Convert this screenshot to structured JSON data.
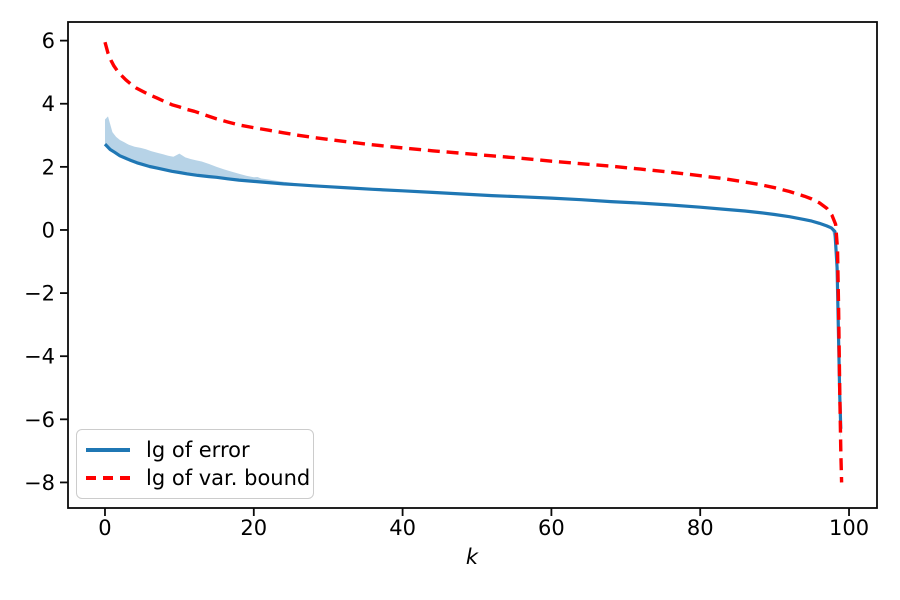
{
  "figure": {
    "xlabel": "k",
    "legend_items": [
      {
        "label": "lg of error",
        "color": "#1f77b4",
        "style": "solid"
      },
      {
        "label": "lg of var. bound",
        "color": "#ff0000",
        "style": "dashed"
      }
    ]
  },
  "colors": {
    "error_line": "#1f77b4",
    "band_fill": "#1f77b4",
    "band_opacity": 0.32,
    "var_bound_line": "#ff0000",
    "spine": "#0a0a0a",
    "tick_text": "#000000",
    "legend_border": "#cccccc"
  },
  "chart_data": {
    "type": "line",
    "title": "",
    "xlabel": "k",
    "ylabel": "",
    "grid": false,
    "legend_position": "lower left",
    "xlim": [
      -4.97,
      103.76
    ],
    "ylim": [
      -8.81,
      6.59
    ],
    "xticks": [
      0,
      20,
      40,
      60,
      80,
      100
    ],
    "yticks": [
      -8,
      -6,
      -4,
      -2,
      0,
      2,
      4,
      6
    ],
    "series": [
      {
        "name": "lg of error",
        "color": "#1f77b4",
        "style": "solid",
        "width": 3.2,
        "points": [
          [
            0,
            2.72
          ],
          [
            0.7,
            2.55
          ],
          [
            1.3,
            2.46
          ],
          [
            2,
            2.35
          ],
          [
            2.7,
            2.28
          ],
          [
            3.5,
            2.2
          ],
          [
            4.3,
            2.13
          ],
          [
            5,
            2.08
          ],
          [
            6,
            2.01
          ],
          [
            7,
            1.96
          ],
          [
            8,
            1.91
          ],
          [
            9,
            1.86
          ],
          [
            10,
            1.82
          ],
          [
            11,
            1.78
          ],
          [
            12.5,
            1.73
          ],
          [
            14,
            1.69
          ],
          [
            15,
            1.67
          ],
          [
            16.5,
            1.62
          ],
          [
            18,
            1.58
          ],
          [
            20,
            1.54
          ],
          [
            22,
            1.5
          ],
          [
            24,
            1.46
          ],
          [
            26,
            1.43
          ],
          [
            28,
            1.4
          ],
          [
            30,
            1.37
          ],
          [
            33,
            1.33
          ],
          [
            36,
            1.29
          ],
          [
            40,
            1.24
          ],
          [
            44,
            1.19
          ],
          [
            48,
            1.14
          ],
          [
            52,
            1.09
          ],
          [
            56,
            1.05
          ],
          [
            60,
            1.01
          ],
          [
            64,
            0.96
          ],
          [
            68,
            0.9
          ],
          [
            72,
            0.85
          ],
          [
            76,
            0.79
          ],
          [
            80,
            0.72
          ],
          [
            83,
            0.66
          ],
          [
            86,
            0.6
          ],
          [
            88,
            0.55
          ],
          [
            90,
            0.49
          ],
          [
            92,
            0.42
          ],
          [
            94,
            0.33
          ],
          [
            95,
            0.28
          ],
          [
            96,
            0.21
          ],
          [
            97,
            0.13
          ],
          [
            97.6,
            0.07
          ],
          [
            98.1,
            -0.05
          ],
          [
            98.4,
            -1.2
          ],
          [
            98.6,
            -3.5
          ],
          [
            98.75,
            -5.2
          ],
          [
            98.9,
            -6.3
          ]
        ]
      },
      {
        "name": "lg of var. bound",
        "color": "#ff0000",
        "style": "dashed",
        "width": 3.4,
        "dash": [
          12,
          6.8
        ],
        "points": [
          [
            0,
            5.95
          ],
          [
            0.4,
            5.6
          ],
          [
            0.8,
            5.38
          ],
          [
            1.2,
            5.2
          ],
          [
            1.7,
            5.03
          ],
          [
            2.2,
            4.9
          ],
          [
            2.8,
            4.76
          ],
          [
            3.5,
            4.62
          ],
          [
            4.2,
            4.5
          ],
          [
            5,
            4.4
          ],
          [
            6,
            4.28
          ],
          [
            7,
            4.18
          ],
          [
            8,
            4.07
          ],
          [
            9,
            3.97
          ],
          [
            10,
            3.9
          ],
          [
            11,
            3.82
          ],
          [
            12,
            3.76
          ],
          [
            13.5,
            3.64
          ],
          [
            15,
            3.52
          ],
          [
            16.5,
            3.42
          ],
          [
            18,
            3.33
          ],
          [
            20,
            3.24
          ],
          [
            22,
            3.16
          ],
          [
            24,
            3.08
          ],
          [
            26,
            3.0
          ],
          [
            28,
            2.93
          ],
          [
            30,
            2.87
          ],
          [
            33,
            2.78
          ],
          [
            36,
            2.7
          ],
          [
            40,
            2.6
          ],
          [
            44,
            2.51
          ],
          [
            48,
            2.43
          ],
          [
            52,
            2.35
          ],
          [
            56,
            2.27
          ],
          [
            60,
            2.18
          ],
          [
            64,
            2.1
          ],
          [
            68,
            2.02
          ],
          [
            72,
            1.93
          ],
          [
            76,
            1.83
          ],
          [
            80,
            1.72
          ],
          [
            83,
            1.63
          ],
          [
            86,
            1.52
          ],
          [
            88,
            1.44
          ],
          [
            90,
            1.34
          ],
          [
            92,
            1.22
          ],
          [
            94,
            1.07
          ],
          [
            95,
            0.98
          ],
          [
            96,
            0.86
          ],
          [
            97,
            0.69
          ],
          [
            97.7,
            0.47
          ],
          [
            98.2,
            0.18
          ],
          [
            98.45,
            -0.6
          ],
          [
            98.6,
            -2.5
          ],
          [
            98.75,
            -5.0
          ],
          [
            98.9,
            -7.0
          ],
          [
            99,
            -8.0
          ]
        ]
      }
    ],
    "band": {
      "name": "error band",
      "color": "#1f77b4",
      "opacity": 0.32,
      "upper": [
        [
          0,
          3.5
        ],
        [
          0.4,
          3.6
        ],
        [
          1,
          3.1
        ],
        [
          1.5,
          2.95
        ],
        [
          2,
          2.85
        ],
        [
          2.6,
          2.78
        ],
        [
          3.2,
          2.7
        ],
        [
          4,
          2.64
        ],
        [
          4.8,
          2.6
        ],
        [
          5.5,
          2.56
        ],
        [
          6.2,
          2.5
        ],
        [
          7,
          2.45
        ],
        [
          7.8,
          2.4
        ],
        [
          8.5,
          2.35
        ],
        [
          9.2,
          2.32
        ],
        [
          10,
          2.42
        ],
        [
          10.8,
          2.3
        ],
        [
          11.5,
          2.25
        ],
        [
          12.2,
          2.21
        ],
        [
          13,
          2.17
        ],
        [
          14,
          2.09
        ],
        [
          15,
          2.0
        ],
        [
          16,
          1.92
        ],
        [
          17,
          1.85
        ],
        [
          18,
          1.78
        ],
        [
          19,
          1.72
        ],
        [
          20,
          1.67
        ],
        [
          20.5,
          1.68
        ],
        [
          21,
          1.63
        ],
        [
          22,
          1.6
        ],
        [
          23,
          1.56
        ],
        [
          24,
          1.53
        ],
        [
          25,
          1.5
        ],
        [
          26,
          1.47
        ],
        [
          27,
          1.45
        ],
        [
          28,
          1.42
        ],
        [
          29,
          1.4
        ],
        [
          30,
          1.38
        ],
        [
          32,
          1.35
        ],
        [
          34,
          1.31
        ],
        [
          36,
          1.29
        ],
        [
          40,
          1.24
        ],
        [
          44,
          1.19
        ],
        [
          48,
          1.14
        ],
        [
          52,
          1.09
        ],
        [
          56,
          1.05
        ],
        [
          60,
          1.01
        ],
        [
          64,
          0.96
        ],
        [
          68,
          0.9
        ],
        [
          72,
          0.85
        ],
        [
          76,
          0.79
        ],
        [
          80,
          0.72
        ],
        [
          83,
          0.66
        ],
        [
          86,
          0.6
        ],
        [
          88,
          0.55
        ],
        [
          90,
          0.49
        ],
        [
          92,
          0.42
        ],
        [
          94,
          0.33
        ],
        [
          95,
          0.28
        ],
        [
          96,
          0.21
        ],
        [
          97,
          0.13
        ],
        [
          97.6,
          0.07
        ],
        [
          98.1,
          -0.05
        ],
        [
          98.4,
          -1.2
        ],
        [
          98.6,
          -3.5
        ],
        [
          98.75,
          -5.2
        ],
        [
          98.9,
          -6.3
        ]
      ],
      "lower": [
        [
          0,
          2.72
        ],
        [
          1,
          2.47
        ],
        [
          2,
          2.33
        ],
        [
          3,
          2.23
        ],
        [
          4,
          2.15
        ],
        [
          5,
          2.08
        ],
        [
          6,
          2.01
        ],
        [
          7,
          1.96
        ],
        [
          8,
          1.91
        ],
        [
          9,
          1.86
        ],
        [
          10,
          1.82
        ],
        [
          11,
          1.78
        ],
        [
          12,
          1.74
        ],
        [
          13,
          1.71
        ],
        [
          14,
          1.68
        ],
        [
          15,
          1.66
        ],
        [
          16,
          1.63
        ],
        [
          17,
          1.6
        ],
        [
          18,
          1.58
        ],
        [
          19,
          1.56
        ],
        [
          20,
          1.54
        ],
        [
          22,
          1.5
        ],
        [
          24,
          1.46
        ],
        [
          26,
          1.43
        ],
        [
          28,
          1.4
        ],
        [
          30,
          1.37
        ],
        [
          33,
          1.33
        ],
        [
          36,
          1.29
        ],
        [
          40,
          1.24
        ],
        [
          44,
          1.19
        ],
        [
          48,
          1.14
        ],
        [
          52,
          1.09
        ],
        [
          56,
          1.05
        ],
        [
          60,
          1.01
        ],
        [
          64,
          0.96
        ],
        [
          68,
          0.9
        ],
        [
          72,
          0.85
        ],
        [
          76,
          0.79
        ],
        [
          80,
          0.72
        ],
        [
          83,
          0.66
        ],
        [
          86,
          0.6
        ],
        [
          88,
          0.55
        ],
        [
          90,
          0.49
        ],
        [
          92,
          0.42
        ],
        [
          94,
          0.33
        ],
        [
          95,
          0.28
        ],
        [
          96,
          0.21
        ],
        [
          97,
          0.13
        ],
        [
          97.6,
          0.06
        ],
        [
          98.1,
          -0.35
        ],
        [
          98.35,
          -1.8
        ],
        [
          98.55,
          -4.0
        ],
        [
          98.7,
          -5.8
        ],
        [
          98.85,
          -6.55
        ],
        [
          98.9,
          -6.55
        ]
      ]
    }
  }
}
